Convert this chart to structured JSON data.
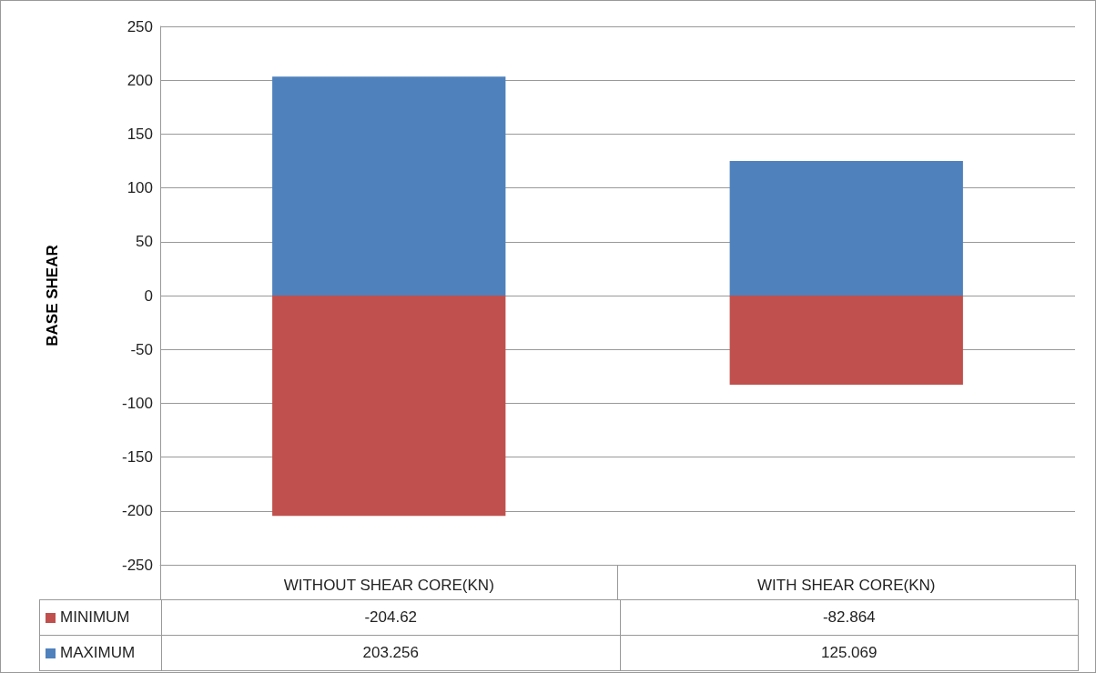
{
  "chart_data": {
    "type": "bar",
    "ylabel": "BASE SHEAR",
    "categories": [
      "WITHOUT SHEAR CORE(KN)",
      "WITH SHEAR CORE(KN)"
    ],
    "series": [
      {
        "name": "MINIMUM",
        "color": "#c0504d",
        "values": [
          -204.62,
          -82.864
        ]
      },
      {
        "name": "MAXIMUM",
        "color": "#4f81bd",
        "values": [
          203.256,
          125.069
        ]
      }
    ],
    "stacked": true,
    "ylim": [
      -250,
      250
    ],
    "yticks": [
      -250,
      -200,
      -150,
      -100,
      -50,
      0,
      50,
      100,
      150,
      200,
      250
    ],
    "grid": "y",
    "legend": "bottom",
    "data_labels": true
  }
}
